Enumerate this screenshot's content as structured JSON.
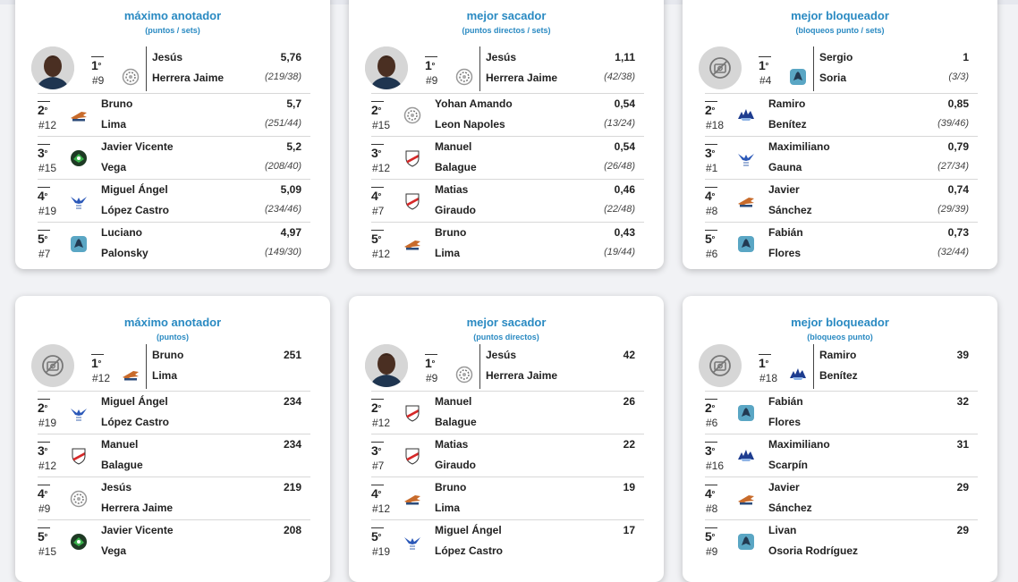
{
  "cards": [
    {
      "title": "máximo anotador",
      "subtitle": "(puntos / sets)",
      "rows": [
        {
          "position": "1",
          "suffix": "º",
          "number": "#9",
          "first_name": "Jesús",
          "last_name": "Herrera Jaime",
          "value": "5,76",
          "detail": "(219/38)",
          "team": "white-badge",
          "photo": "player-photo"
        },
        {
          "position": "2",
          "suffix": "º",
          "number": "#12",
          "first_name": "Bruno",
          "last_name": "Lima",
          "value": "5,7",
          "detail": "(251/44)",
          "team": "eagle-logo"
        },
        {
          "position": "3",
          "suffix": "º",
          "number": "#15",
          "first_name": "Javier Vicente",
          "last_name": "Vega",
          "value": "5,2",
          "detail": "(208/40)",
          "team": "green-badge"
        },
        {
          "position": "4",
          "suffix": "º",
          "number": "#19",
          "first_name": "Miguel Ángel",
          "last_name": "López Castro",
          "value": "5,09",
          "detail": "(234/46)",
          "team": "blue-bird"
        },
        {
          "position": "5",
          "suffix": "º",
          "number": "#7",
          "first_name": "Luciano",
          "last_name": "Palonsky",
          "value": "4,97",
          "detail": "(149/30)",
          "team": "teal-bird"
        }
      ]
    },
    {
      "title": "mejor sacador",
      "subtitle": "(puntos directos / sets)",
      "rows": [
        {
          "position": "1",
          "suffix": "º",
          "number": "#9",
          "first_name": "Jesús",
          "last_name": "Herrera Jaime",
          "value": "1,11",
          "detail": "(42/38)",
          "team": "white-badge",
          "photo": "player-photo"
        },
        {
          "position": "2",
          "suffix": "º",
          "number": "#15",
          "first_name": "Yohan Amando",
          "last_name": "Leon Napoles",
          "value": "0,54",
          "detail": "(13/24)",
          "team": "white-badge"
        },
        {
          "position": "3",
          "suffix": "º",
          "number": "#12",
          "first_name": "Manuel",
          "last_name": "Balague",
          "value": "0,54",
          "detail": "(26/48)",
          "team": "river-shield"
        },
        {
          "position": "4",
          "suffix": "º",
          "number": "#7",
          "first_name": "Matias",
          "last_name": "Giraudo",
          "value": "0,46",
          "detail": "(22/48)",
          "team": "river-shield"
        },
        {
          "position": "5",
          "suffix": "º",
          "number": "#12",
          "first_name": "Bruno",
          "last_name": "Lima",
          "value": "0,43",
          "detail": "(19/44)",
          "team": "eagle-logo"
        }
      ]
    },
    {
      "title": "mejor bloqueador",
      "subtitle": "(bloqueos punto / sets)",
      "rows": [
        {
          "position": "1",
          "suffix": "º",
          "number": "#4",
          "first_name": "Sergio",
          "last_name": "Soria",
          "value": "1",
          "detail": "(3/3)",
          "team": "teal-bird",
          "photo": "no-photo"
        },
        {
          "position": "2",
          "suffix": "º",
          "number": "#18",
          "first_name": "Ramiro",
          "last_name": "Benítez",
          "value": "0,85",
          "detail": "(39/46)",
          "team": "blue-spiky"
        },
        {
          "position": "3",
          "suffix": "º",
          "number": "#1",
          "first_name": "Maximiliano",
          "last_name": "Gauna",
          "value": "0,79",
          "detail": "(27/34)",
          "team": "blue-bird"
        },
        {
          "position": "4",
          "suffix": "º",
          "number": "#8",
          "first_name": "Javier",
          "last_name": "Sánchez",
          "value": "0,74",
          "detail": "(29/39)",
          "team": "eagle-logo"
        },
        {
          "position": "5",
          "suffix": "º",
          "number": "#6",
          "first_name": "Fabián",
          "last_name": "Flores",
          "value": "0,73",
          "detail": "(32/44)",
          "team": "teal-bird"
        }
      ]
    },
    {
      "title": "máximo anotador",
      "subtitle": "(puntos)",
      "rows": [
        {
          "position": "1",
          "suffix": "º",
          "number": "#12",
          "first_name": "Bruno",
          "last_name": "Lima",
          "value": "251",
          "detail": "",
          "team": "eagle-logo",
          "photo": "no-photo"
        },
        {
          "position": "2",
          "suffix": "º",
          "number": "#19",
          "first_name": "Miguel Ángel",
          "last_name": "López Castro",
          "value": "234",
          "detail": "",
          "team": "blue-bird"
        },
        {
          "position": "3",
          "suffix": "º",
          "number": "#12",
          "first_name": "Manuel",
          "last_name": "Balague",
          "value": "234",
          "detail": "",
          "team": "river-shield"
        },
        {
          "position": "4",
          "suffix": "º",
          "number": "#9",
          "first_name": "Jesús",
          "last_name": "Herrera Jaime",
          "value": "219",
          "detail": "",
          "team": "white-badge"
        },
        {
          "position": "5",
          "suffix": "º",
          "number": "#15",
          "first_name": "Javier Vicente",
          "last_name": "Vega",
          "value": "208",
          "detail": "",
          "team": "green-badge"
        }
      ]
    },
    {
      "title": "mejor sacador",
      "subtitle": "(puntos directos)",
      "rows": [
        {
          "position": "1",
          "suffix": "º",
          "number": "#9",
          "first_name": "Jesús",
          "last_name": "Herrera Jaime",
          "value": "42",
          "detail": "",
          "team": "white-badge",
          "photo": "player-photo"
        },
        {
          "position": "2",
          "suffix": "º",
          "number": "#12",
          "first_name": "Manuel",
          "last_name": "Balague",
          "value": "26",
          "detail": "",
          "team": "river-shield"
        },
        {
          "position": "3",
          "suffix": "º",
          "number": "#7",
          "first_name": "Matias",
          "last_name": "Giraudo",
          "value": "22",
          "detail": "",
          "team": "river-shield"
        },
        {
          "position": "4",
          "suffix": "º",
          "number": "#12",
          "first_name": "Bruno",
          "last_name": "Lima",
          "value": "19",
          "detail": "",
          "team": "eagle-logo"
        },
        {
          "position": "5",
          "suffix": "º",
          "number": "#19",
          "first_name": "Miguel Ángel",
          "last_name": "López Castro",
          "value": "17",
          "detail": "",
          "team": "blue-bird"
        }
      ]
    },
    {
      "title": "mejor bloqueador",
      "subtitle": "(bloqueos punto)",
      "rows": [
        {
          "position": "1",
          "suffix": "º",
          "number": "#18",
          "first_name": "Ramiro",
          "last_name": "Benítez",
          "value": "39",
          "detail": "",
          "team": "blue-spiky",
          "photo": "no-photo"
        },
        {
          "position": "2",
          "suffix": "º",
          "number": "#6",
          "first_name": "Fabián",
          "last_name": "Flores",
          "value": "32",
          "detail": "",
          "team": "teal-bird"
        },
        {
          "position": "3",
          "suffix": "º",
          "number": "#16",
          "first_name": "Maximiliano",
          "last_name": "Scarpín",
          "value": "31",
          "detail": "",
          "team": "blue-spiky"
        },
        {
          "position": "4",
          "suffix": "º",
          "number": "#8",
          "first_name": "Javier",
          "last_name": "Sánchez",
          "value": "29",
          "detail": "",
          "team": "eagle-logo"
        },
        {
          "position": "5",
          "suffix": "º",
          "number": "#9",
          "first_name": "Livan",
          "last_name": "Osoria Rodríguez",
          "value": "29",
          "detail": "",
          "team": "teal-bird"
        }
      ]
    }
  ]
}
